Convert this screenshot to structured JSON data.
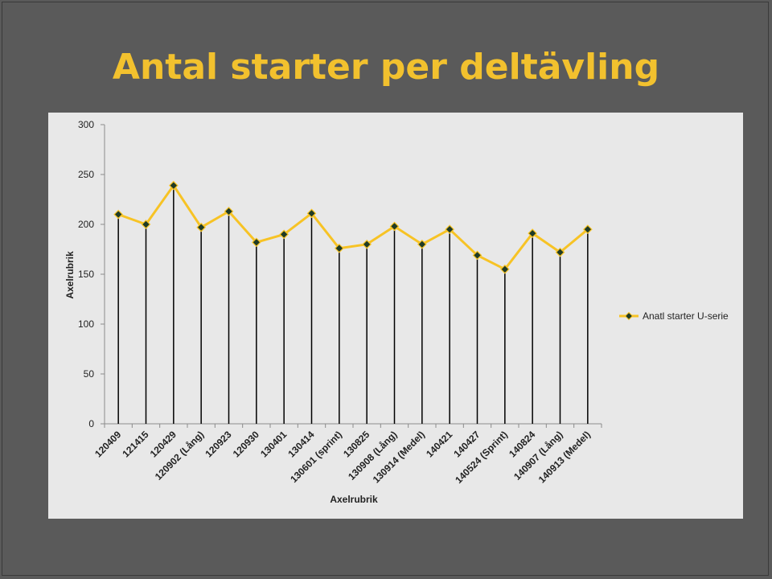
{
  "page": {
    "title": "Antal starter per deltävling"
  },
  "colors": {
    "line": "#f7c325",
    "marker": "#1f3b26",
    "drop": "#000000",
    "panel": "#e8e8e8",
    "title": "#f2c12e"
  },
  "chart_data": {
    "type": "line",
    "title": "Antal starter per deltävling",
    "xlabel": "Axelrubrik",
    "ylabel": "Axelrubrik",
    "ylim": [
      0,
      300
    ],
    "yticks": [
      "0",
      "50",
      "100",
      "150",
      "200",
      "250",
      "300"
    ],
    "grid": false,
    "legend": "right",
    "categories": [
      "120409",
      "121415",
      "120429",
      "120902 (Lång)",
      "120923",
      "120930",
      "130401",
      "130414",
      "130601 (sprint)",
      "130825",
      "130908 (Lång)",
      "130914 (Medel)",
      "140421",
      "140427",
      "140524 (Sprint)",
      "140824",
      "140907 (Lång)",
      "140913 (Medel)"
    ],
    "series": [
      {
        "name": "Anatl starter U-serie",
        "values": [
          210,
          200,
          239,
          197,
          213,
          182,
          190,
          211,
          176,
          180,
          198,
          180,
          195,
          169,
          155,
          191,
          172,
          195
        ]
      }
    ]
  }
}
